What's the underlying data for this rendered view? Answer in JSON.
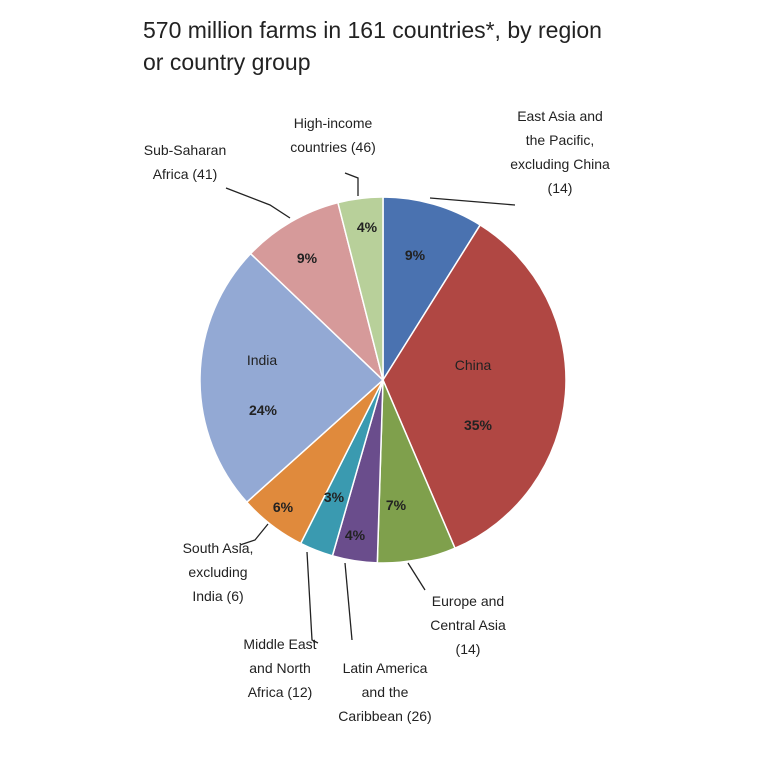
{
  "chart_data": {
    "type": "pie",
    "title": "570 million farms in 161 countries*, by region or country group",
    "categories": [
      "East Asia and the Pacific, excluding China (14)",
      "China",
      "Europe and Central Asia (14)",
      "Latin America and the Caribbean (26)",
      "Middle East and North Africa (12)",
      "South Asia, excluding India (6)",
      "India",
      "Sub-Saharan Africa (41)",
      "High-income countries (46)"
    ],
    "values": [
      9,
      35,
      7,
      4,
      3,
      6,
      24,
      9,
      4
    ],
    "value_labels": [
      "9%",
      "35%",
      "7%",
      "4%",
      "3%",
      "6%",
      "24%",
      "9%",
      "4%"
    ],
    "colors": [
      "#4a72b0",
      "#b04743",
      "#7fa04c",
      "#6a4d8c",
      "#3a9ab0",
      "#e08a3c",
      "#93a9d4",
      "#d69a9a",
      "#b8d09a"
    ]
  }
}
